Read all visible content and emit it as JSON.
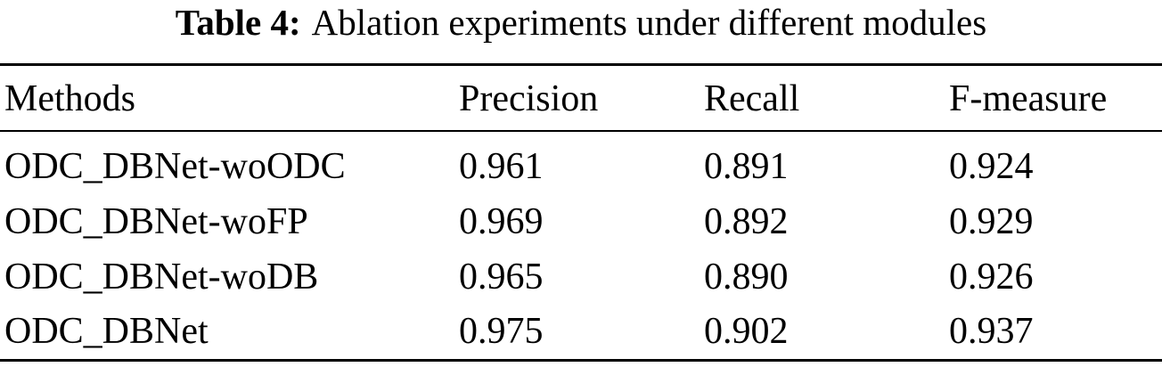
{
  "caption": {
    "label": "Table 4:",
    "text": "Ablation experiments under different modules"
  },
  "table": {
    "header": [
      "Methods",
      "Precision",
      "Recall",
      "F-measure"
    ],
    "rows": [
      [
        "ODC_DBNet-woODC",
        "0.961",
        "0.891",
        "0.924"
      ],
      [
        "ODC_DBNet-woFP",
        "0.969",
        "0.892",
        "0.929"
      ],
      [
        "ODC_DBNet-woDB",
        "0.965",
        "0.890",
        "0.926"
      ],
      [
        "ODC_DBNet",
        "0.975",
        "0.902",
        "0.937"
      ]
    ]
  }
}
